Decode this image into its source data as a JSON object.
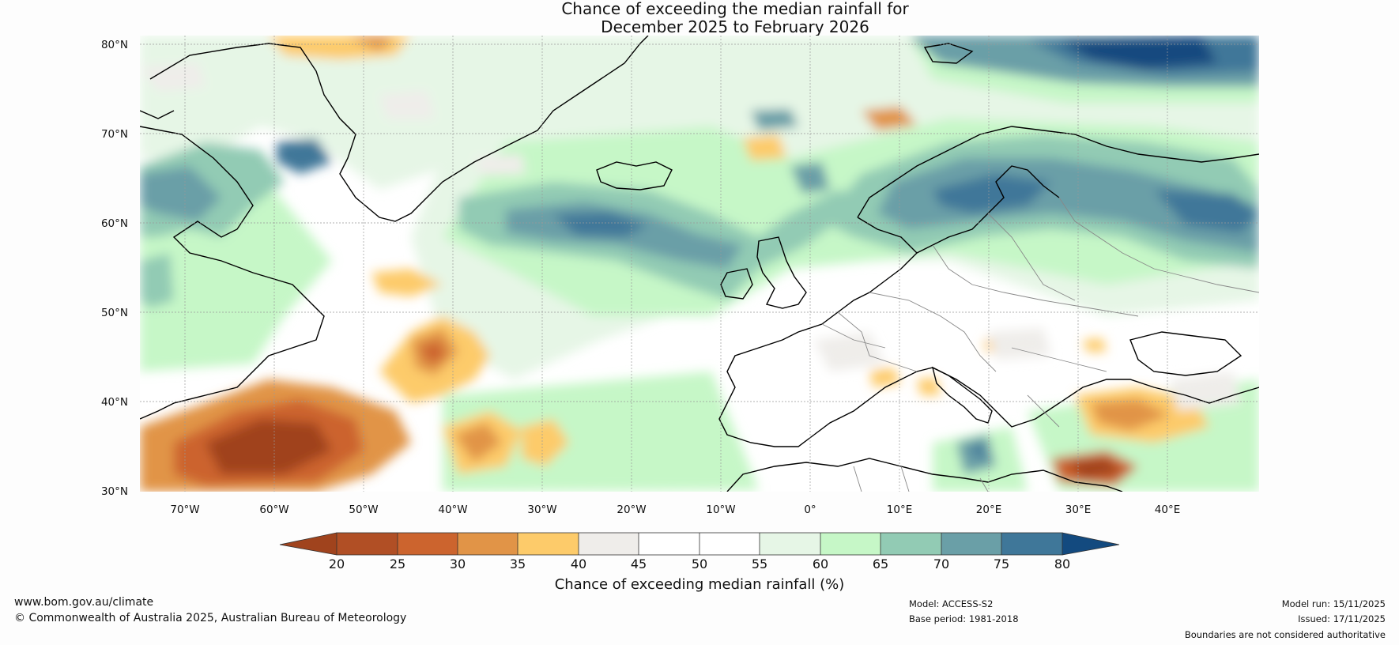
{
  "title_line1": "Chance of exceeding the median rainfall for",
  "title_line2": "December 2025 to February 2026",
  "map": {
    "lat_ticks": [
      "80°N",
      "70°N",
      "60°N",
      "50°N",
      "40°N",
      "30°N"
    ],
    "lon_ticks": [
      "70°W",
      "60°W",
      "50°W",
      "40°W",
      "30°W",
      "20°W",
      "10°W",
      "0°",
      "10°E",
      "20°E",
      "30°E",
      "40°E"
    ],
    "lat_range": [
      30,
      81
    ],
    "lon_range": [
      -75,
      50
    ]
  },
  "colorbar": {
    "ticks": [
      "20",
      "25",
      "30",
      "35",
      "40",
      "45",
      "50",
      "55",
      "60",
      "65",
      "70",
      "75",
      "80"
    ],
    "colors": [
      "#a0431d",
      "#b14f25",
      "#cc642e",
      "#e19447",
      "#fdcb6a",
      "#efedea",
      "#ffffff",
      "#ffffff",
      "#e6f6e6",
      "#c6f7c7",
      "#92cbb4",
      "#6a9fa7",
      "#3f7799",
      "#134a7f"
    ],
    "label": "Chance of exceeding median rainfall (%)"
  },
  "footer": {
    "website": "www.bom.gov.au/climate",
    "copyright": "© Commonwealth of Australia 2025, Australian Bureau of Meteorology",
    "model": "Model: ACCESS-S2",
    "base_period": "Base period: 1981-2018",
    "model_run": "Model run: 15/11/2025",
    "issued": "Issued: 17/11/2025",
    "disclaimer": "Boundaries are not considered authoritative"
  }
}
